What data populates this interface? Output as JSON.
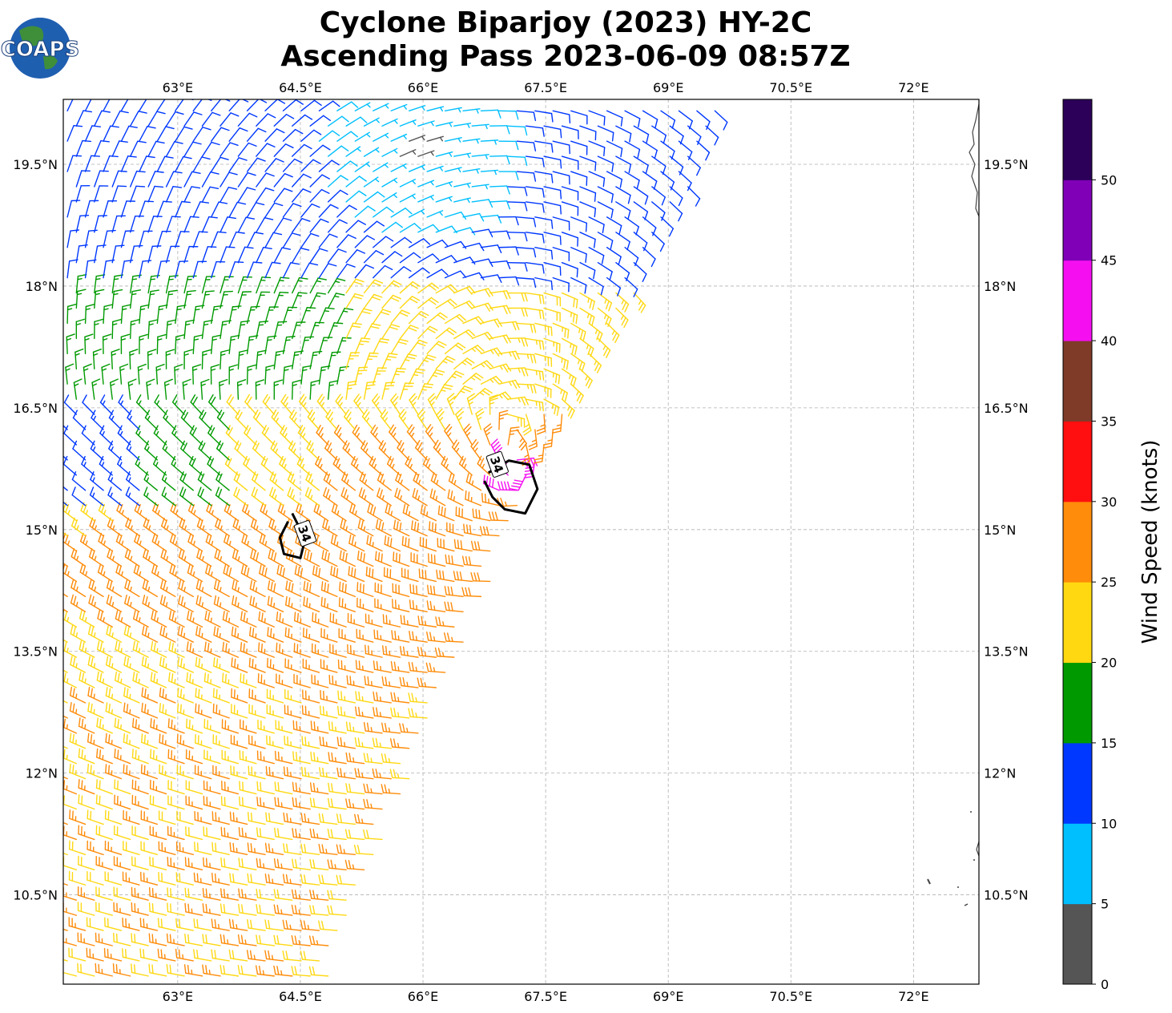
{
  "logo": {
    "text": "COAPS"
  },
  "title": {
    "line1": "Cyclone Biparjoy (2023) HY-2C",
    "line2": "Ascending Pass 2023-06-09 08:57Z"
  },
  "map": {
    "lon_range": [
      61.6,
      72.8
    ],
    "lat_range": [
      9.4,
      20.3
    ],
    "lon_ticks": [
      {
        "value": 63.0,
        "label": "63°E"
      },
      {
        "value": 64.5,
        "label": "64.5°E"
      },
      {
        "value": 66.0,
        "label": "66°E"
      },
      {
        "value": 67.5,
        "label": "67.5°E"
      },
      {
        "value": 69.0,
        "label": "69°E"
      },
      {
        "value": 70.5,
        "label": "70.5°E"
      },
      {
        "value": 72.0,
        "label": "72°E"
      }
    ],
    "lat_ticks": [
      {
        "value": 19.5,
        "label": "19.5°N"
      },
      {
        "value": 18.0,
        "label": "18°N"
      },
      {
        "value": 16.5,
        "label": "16.5°N"
      },
      {
        "value": 15.0,
        "label": "15°N"
      },
      {
        "value": 13.5,
        "label": "13.5°N"
      },
      {
        "value": 12.0,
        "label": "12°N"
      },
      {
        "value": 10.5,
        "label": "10.5°N"
      }
    ],
    "gridlines": true,
    "storm_center": {
      "lon": 67.2,
      "lat": 15.65
    },
    "secondary_center": {
      "lon": 65.9,
      "lat": 19.7
    },
    "swath_edge": [
      [
        69.8,
        20.3
      ],
      [
        67.0,
        14.8
      ],
      [
        64.8,
        9.4
      ]
    ],
    "contours": [
      {
        "value": 34,
        "label": "34",
        "path": [
          [
            64.35,
            15.1
          ],
          [
            64.25,
            14.9
          ],
          [
            64.3,
            14.7
          ],
          [
            64.5,
            14.65
          ],
          [
            64.55,
            14.85
          ],
          [
            64.5,
            15.0
          ],
          [
            64.4,
            15.2
          ]
        ],
        "label_at": [
          64.55,
          14.95
        ]
      },
      {
        "value": 34,
        "label": "34",
        "path": [
          [
            66.75,
            15.6
          ],
          [
            66.85,
            15.4
          ],
          [
            67.0,
            15.25
          ],
          [
            67.25,
            15.2
          ],
          [
            67.4,
            15.5
          ],
          [
            67.3,
            15.8
          ],
          [
            67.05,
            15.85
          ],
          [
            66.8,
            15.7
          ]
        ],
        "label_at": [
          66.9,
          15.8
        ]
      }
    ]
  },
  "colorbar": {
    "label": "Wind Speed (knots)",
    "ticks": [
      "0",
      "5",
      "10",
      "15",
      "20",
      "25",
      "30",
      "35",
      "40",
      "45",
      "50"
    ],
    "bins": [
      {
        "min": 0,
        "max": 5,
        "color": "#555555"
      },
      {
        "min": 5,
        "max": 10,
        "color": "#00bfff"
      },
      {
        "min": 10,
        "max": 15,
        "color": "#0038ff"
      },
      {
        "min": 15,
        "max": 20,
        "color": "#009a00"
      },
      {
        "min": 20,
        "max": 25,
        "color": "#ffd812"
      },
      {
        "min": 25,
        "max": 30,
        "color": "#ff8c0a"
      },
      {
        "min": 30,
        "max": 35,
        "color": "#ff0f0f"
      },
      {
        "min": 35,
        "max": 40,
        "color": "#7f3b28"
      },
      {
        "min": 40,
        "max": 45,
        "color": "#f50ff0"
      },
      {
        "min": 45,
        "max": 50,
        "color": "#8000b8"
      },
      {
        "min": 50,
        "max": 55,
        "color": "#2c0059"
      }
    ]
  }
}
